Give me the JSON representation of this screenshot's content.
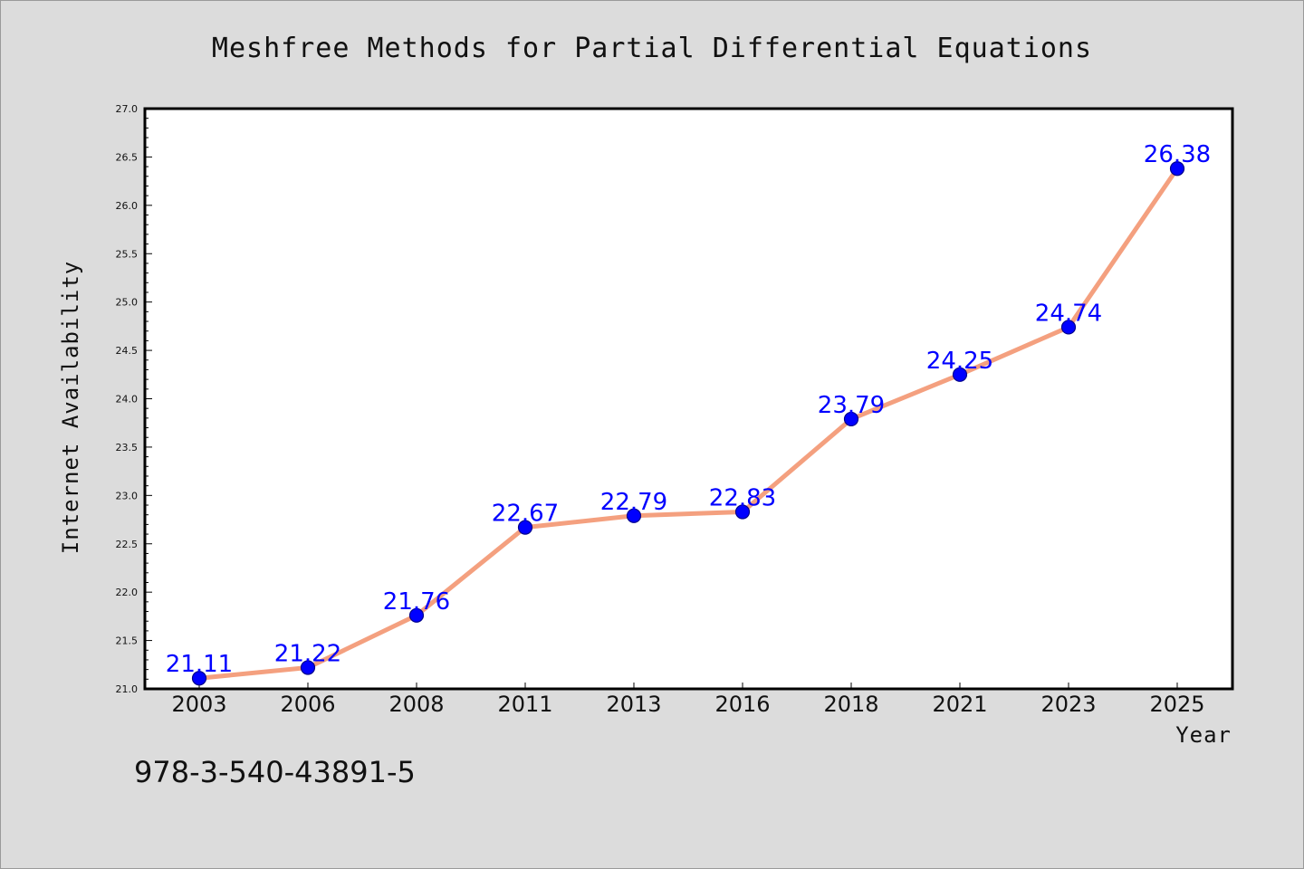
{
  "chart_data": {
    "type": "line",
    "title": "Meshfree Methods for Partial Differential Equations",
    "xlabel": "Year",
    "ylabel": "Internet Availability",
    "categories": [
      "2003",
      "2006",
      "2008",
      "2011",
      "2013",
      "2016",
      "2018",
      "2021",
      "2023",
      "2025"
    ],
    "series": [
      {
        "values": [
          21.11,
          21.22,
          21.76,
          22.67,
          22.79,
          22.83,
          23.79,
          24.25,
          24.74,
          26.38
        ]
      }
    ],
    "ylim": [
      21.0,
      27.0
    ],
    "yticks": [
      "21.0",
      "21.5",
      "22.0",
      "22.5",
      "23.0",
      "23.5",
      "24.0",
      "24.5",
      "25.0",
      "25.5",
      "26.0",
      "26.5",
      "27.0"
    ],
    "grid": false,
    "legend": "none",
    "colors": {
      "line": "#f4a07f",
      "marker": "#0000ff",
      "marker_edge": "#00008b",
      "data_label": "#0000ff",
      "background": "#dcdcdc",
      "plot_area": "#ffffff"
    }
  },
  "footer": {
    "isbn": "978-3-540-43891-5"
  }
}
